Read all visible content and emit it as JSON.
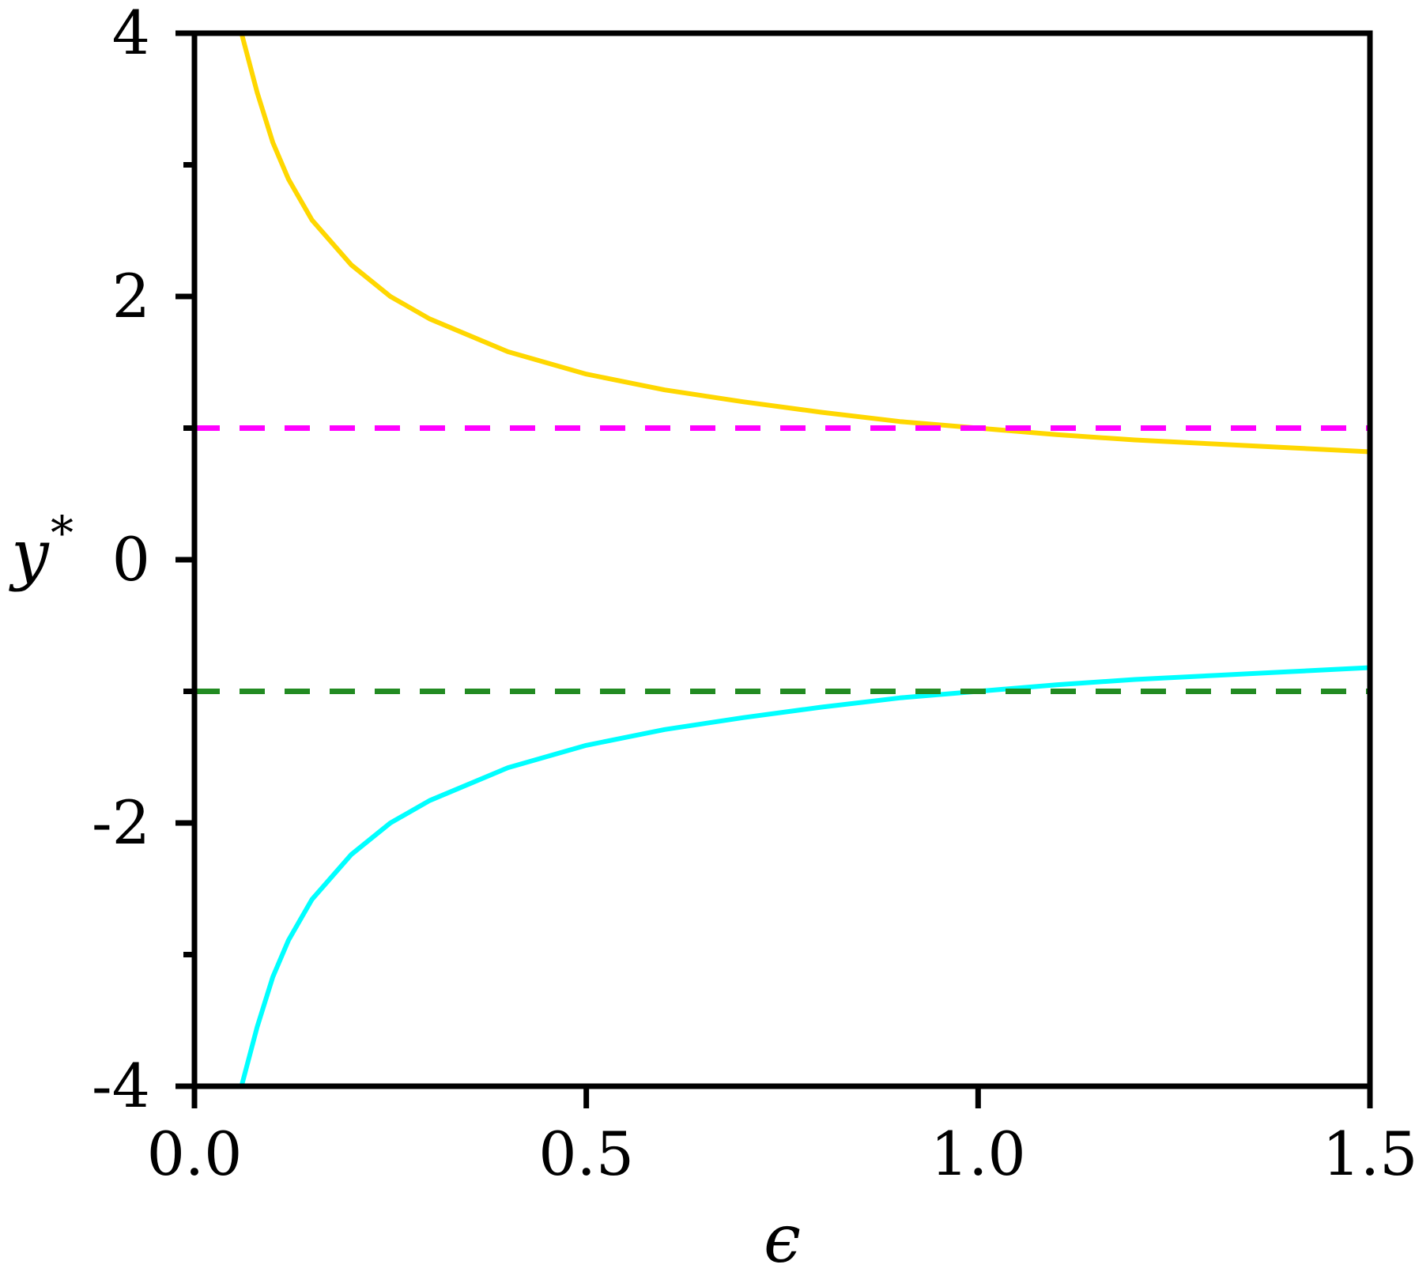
{
  "chart_data": {
    "type": "line",
    "xlabel": "ϵ",
    "ylabel": "y",
    "ylabel_superscript": "*",
    "xlim": [
      0.0,
      1.5
    ],
    "ylim": [
      -4,
      4
    ],
    "grid": false,
    "x_ticks": [
      0.0,
      0.5,
      1.0,
      1.5
    ],
    "x_tick_labels": [
      "0.0",
      "0.5",
      "1.0",
      "1.5"
    ],
    "y_ticks_major": [
      -4,
      -2,
      0,
      2,
      4
    ],
    "y_tick_labels": [
      "-4",
      "-2",
      "0",
      "2",
      "4"
    ],
    "y_ticks_minor": [
      -3,
      -1,
      1,
      3
    ],
    "series": [
      {
        "style": "solid",
        "color": "#ffd700",
        "x": [
          0.06,
          0.08,
          0.1,
          0.12,
          0.15,
          0.2,
          0.25,
          0.3,
          0.4,
          0.5,
          0.6,
          0.7,
          0.8,
          0.9,
          1.0,
          1.1,
          1.2,
          1.3,
          1.4,
          1.5
        ],
        "y": [
          4.0,
          3.55,
          3.17,
          2.89,
          2.58,
          2.24,
          2.0,
          1.83,
          1.58,
          1.41,
          1.29,
          1.2,
          1.12,
          1.05,
          1.0,
          0.95,
          0.91,
          0.88,
          0.85,
          0.82
        ]
      },
      {
        "style": "solid",
        "color": "#00ffff",
        "x": [
          0.06,
          0.08,
          0.1,
          0.12,
          0.15,
          0.2,
          0.25,
          0.3,
          0.4,
          0.5,
          0.6,
          0.7,
          0.8,
          0.9,
          1.0,
          1.1,
          1.2,
          1.3,
          1.4,
          1.5
        ],
        "y": [
          -4.0,
          -3.55,
          -3.17,
          -2.89,
          -2.58,
          -2.24,
          -2.0,
          -1.83,
          -1.58,
          -1.41,
          -1.29,
          -1.2,
          -1.12,
          -1.05,
          -1.0,
          -0.95,
          -0.91,
          -0.88,
          -0.85,
          -0.82
        ]
      },
      {
        "style": "dashed",
        "color": "#ff00ff",
        "x": [
          0.0,
          1.5
        ],
        "y": [
          1,
          1
        ]
      },
      {
        "style": "dashed",
        "color": "#228b22",
        "x": [
          0.0,
          1.5
        ],
        "y": [
          -1,
          -1
        ]
      }
    ]
  }
}
